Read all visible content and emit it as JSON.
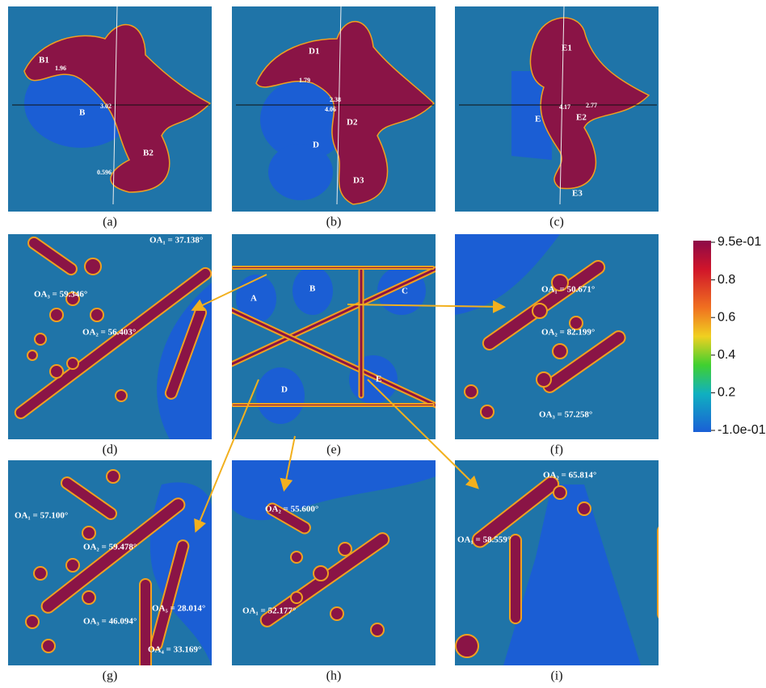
{
  "panels": [
    {
      "label": "(a)",
      "annotations": [
        "B1",
        "B",
        "3.02",
        "1.96",
        "B2",
        "0.596"
      ]
    },
    {
      "label": "(b)",
      "annotations": [
        "D1",
        "1.79",
        "2.38",
        "4.06",
        "D2",
        "D",
        "D3"
      ]
    },
    {
      "label": "(c)",
      "annotations": [
        "E1",
        "E",
        "4.17",
        "2.77",
        "E2",
        "E3"
      ]
    },
    {
      "label": "(d)",
      "annotations": [
        "OA₁ = 37.138°",
        "OA₃ = 59.346°",
        "OA₂ = 56.403°"
      ]
    },
    {
      "label": "(e)",
      "annotations": [
        "A",
        "B",
        "C",
        "D",
        "E"
      ]
    },
    {
      "label": "(f)",
      "annotations": [
        "OA₁ = 50.671°",
        "OA₂ = 82.199°",
        "OA₃ = 57.258°"
      ]
    },
    {
      "label": "(g)",
      "annotations": [
        "OA₁ = 57.100°",
        "OA₂ = 59.478°",
        "OA₃ = 46.094°",
        "OA₅ = 28.014°",
        "OA₄ = 33.169°"
      ]
    },
    {
      "label": "(h)",
      "annotations": [
        "OA₂ = 55.600°",
        "OA₁ = 52.177°"
      ]
    },
    {
      "label": "(i)",
      "annotations": [
        "OA₂ = 65.814°",
        "OA₁ = 58.559°"
      ]
    }
  ],
  "colorbar": {
    "labels": [
      "9.5e-01",
      "0.8",
      "0.6",
      "0.4",
      "0.2",
      "-1.0e-01"
    ]
  }
}
